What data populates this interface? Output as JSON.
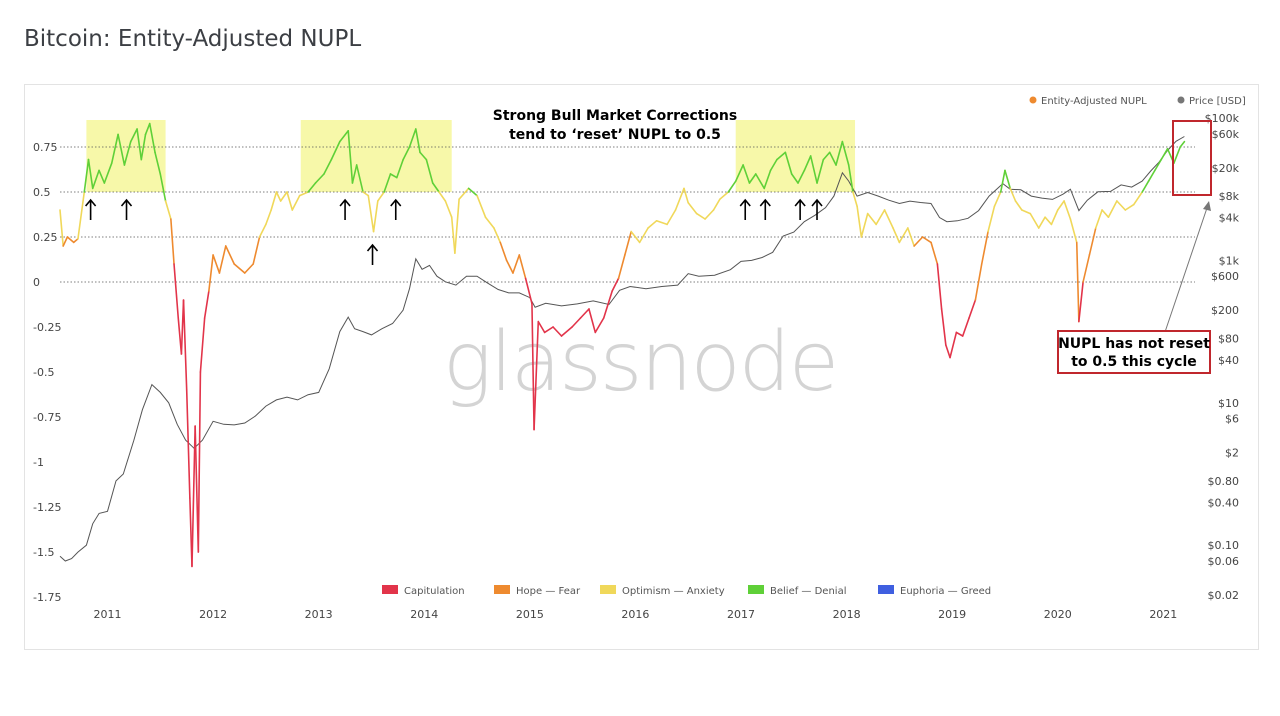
{
  "page": {
    "title": "Bitcoin: Entity-Adjusted NUPL"
  },
  "watermark": "glassnode",
  "chart_data": {
    "type": "line",
    "title": "Bitcoin: Entity-Adjusted NUPL",
    "x_ticks": [
      "2011",
      "2012",
      "2013",
      "2014",
      "2015",
      "2016",
      "2017",
      "2018",
      "2019",
      "2020",
      "2021"
    ],
    "x_range": [
      2010.55,
      2021.3
    ],
    "y_left": {
      "ticks": [
        "0.75",
        "0.5",
        "0.25",
        "0",
        "-0.25",
        "-0.5",
        "-0.75",
        "-1",
        "-1.25",
        "-1.5",
        "-1.75"
      ],
      "tick_values": [
        0.75,
        0.5,
        0.25,
        0,
        -0.25,
        -0.5,
        -0.75,
        -1,
        -1.25,
        -1.5,
        -1.75
      ],
      "range": [
        -1.75,
        0.9
      ],
      "dotted_levels": [
        0.75,
        0.5,
        0.25,
        0
      ]
    },
    "y_right": {
      "scale": "log",
      "ticks": [
        "$100k",
        "$60k",
        "$20k",
        "$8k",
        "$4k",
        "$1k",
        "$600",
        "$200",
        "$80",
        "$40",
        "$10",
        "$6",
        "$2",
        "$0.80",
        "$0.40",
        "$0.10",
        "$0.06",
        "$0.02"
      ],
      "tick_values": [
        100000,
        60000,
        20000,
        8000,
        4000,
        1000,
        600,
        200,
        80,
        40,
        10,
        6,
        2,
        0.8,
        0.4,
        0.1,
        0.06,
        0.02
      ]
    },
    "legend_top": [
      {
        "name": "Entity-Adjusted NUPL",
        "color": "#ee8a2f"
      },
      {
        "name": "Price [USD]",
        "color": "#777777"
      }
    ],
    "legend_bottom": [
      {
        "name": "Capitulation",
        "color": "#e2344a"
      },
      {
        "name": "Hope — Fear",
        "color": "#ee8a2f"
      },
      {
        "name": "Optimism — Anxiety",
        "color": "#f0d85a"
      },
      {
        "name": "Belief — Denial",
        "color": "#5fd038"
      },
      {
        "name": "Euphoria — Greed",
        "color": "#3f5fe0"
      }
    ],
    "zone_thresholds": {
      "capitulation_below": 0,
      "hope_fear_below": 0.25,
      "optimism_below": 0.5,
      "belief_below": 0.75
    },
    "nupl_series": [
      [
        2010.55,
        0.4
      ],
      [
        2010.58,
        0.2
      ],
      [
        2010.62,
        0.25
      ],
      [
        2010.68,
        0.22
      ],
      [
        2010.72,
        0.24
      ],
      [
        2010.78,
        0.5
      ],
      [
        2010.82,
        0.68
      ],
      [
        2010.86,
        0.52
      ],
      [
        2010.92,
        0.62
      ],
      [
        2010.97,
        0.55
      ],
      [
        2011.04,
        0.66
      ],
      [
        2011.1,
        0.82
      ],
      [
        2011.16,
        0.65
      ],
      [
        2011.22,
        0.78
      ],
      [
        2011.28,
        0.85
      ],
      [
        2011.32,
        0.68
      ],
      [
        2011.36,
        0.82
      ],
      [
        2011.4,
        0.88
      ],
      [
        2011.45,
        0.72
      ],
      [
        2011.5,
        0.6
      ],
      [
        2011.55,
        0.45
      ],
      [
        2011.6,
        0.35
      ],
      [
        2011.63,
        0.1
      ],
      [
        2011.67,
        -0.2
      ],
      [
        2011.7,
        -0.4
      ],
      [
        2011.72,
        -0.1
      ],
      [
        2011.75,
        -0.6
      ],
      [
        2011.78,
        -1.2
      ],
      [
        2011.8,
        -1.58
      ],
      [
        2011.83,
        -0.8
      ],
      [
        2011.86,
        -1.5
      ],
      [
        2011.88,
        -0.5
      ],
      [
        2011.92,
        -0.2
      ],
      [
        2011.96,
        -0.05
      ],
      [
        2012.0,
        0.15
      ],
      [
        2012.06,
        0.05
      ],
      [
        2012.12,
        0.2
      ],
      [
        2012.2,
        0.1
      ],
      [
        2012.3,
        0.05
      ],
      [
        2012.38,
        0.1
      ],
      [
        2012.44,
        0.25
      ],
      [
        2012.5,
        0.32
      ],
      [
        2012.55,
        0.4
      ],
      [
        2012.6,
        0.5
      ],
      [
        2012.64,
        0.45
      ],
      [
        2012.7,
        0.5
      ],
      [
        2012.75,
        0.4
      ],
      [
        2012.82,
        0.48
      ],
      [
        2012.9,
        0.5
      ],
      [
        2012.97,
        0.55
      ],
      [
        2013.05,
        0.6
      ],
      [
        2013.12,
        0.68
      ],
      [
        2013.2,
        0.78
      ],
      [
        2013.28,
        0.84
      ],
      [
        2013.32,
        0.55
      ],
      [
        2013.36,
        0.65
      ],
      [
        2013.42,
        0.5
      ],
      [
        2013.47,
        0.48
      ],
      [
        2013.52,
        0.28
      ],
      [
        2013.56,
        0.45
      ],
      [
        2013.62,
        0.5
      ],
      [
        2013.68,
        0.6
      ],
      [
        2013.74,
        0.58
      ],
      [
        2013.8,
        0.68
      ],
      [
        2013.86,
        0.75
      ],
      [
        2013.92,
        0.85
      ],
      [
        2013.96,
        0.72
      ],
      [
        2014.02,
        0.68
      ],
      [
        2014.08,
        0.55
      ],
      [
        2014.14,
        0.5
      ],
      [
        2014.2,
        0.45
      ],
      [
        2014.26,
        0.36
      ],
      [
        2014.29,
        0.16
      ],
      [
        2014.33,
        0.46
      ],
      [
        2014.42,
        0.52
      ],
      [
        2014.5,
        0.48
      ],
      [
        2014.58,
        0.36
      ],
      [
        2014.66,
        0.3
      ],
      [
        2014.72,
        0.22
      ],
      [
        2014.78,
        0.12
      ],
      [
        2014.84,
        0.05
      ],
      [
        2014.9,
        0.15
      ],
      [
        2014.96,
        0.02
      ],
      [
        2015.02,
        -0.12
      ],
      [
        2015.04,
        -0.82
      ],
      [
        2015.08,
        -0.22
      ],
      [
        2015.14,
        -0.28
      ],
      [
        2015.22,
        -0.25
      ],
      [
        2015.3,
        -0.3
      ],
      [
        2015.4,
        -0.25
      ],
      [
        2015.48,
        -0.2
      ],
      [
        2015.56,
        -0.15
      ],
      [
        2015.62,
        -0.28
      ],
      [
        2015.7,
        -0.2
      ],
      [
        2015.78,
        -0.05
      ],
      [
        2015.84,
        0.02
      ],
      [
        2015.9,
        0.15
      ],
      [
        2015.96,
        0.28
      ],
      [
        2016.04,
        0.22
      ],
      [
        2016.12,
        0.3
      ],
      [
        2016.2,
        0.34
      ],
      [
        2016.3,
        0.32
      ],
      [
        2016.38,
        0.4
      ],
      [
        2016.46,
        0.52
      ],
      [
        2016.5,
        0.44
      ],
      [
        2016.58,
        0.38
      ],
      [
        2016.66,
        0.35
      ],
      [
        2016.74,
        0.4
      ],
      [
        2016.8,
        0.46
      ],
      [
        2016.88,
        0.5
      ],
      [
        2016.95,
        0.56
      ],
      [
        2017.02,
        0.65
      ],
      [
        2017.08,
        0.55
      ],
      [
        2017.14,
        0.6
      ],
      [
        2017.22,
        0.52
      ],
      [
        2017.28,
        0.62
      ],
      [
        2017.34,
        0.68
      ],
      [
        2017.42,
        0.72
      ],
      [
        2017.48,
        0.6
      ],
      [
        2017.54,
        0.55
      ],
      [
        2017.6,
        0.62
      ],
      [
        2017.66,
        0.7
      ],
      [
        2017.72,
        0.55
      ],
      [
        2017.78,
        0.68
      ],
      [
        2017.84,
        0.72
      ],
      [
        2017.9,
        0.65
      ],
      [
        2017.96,
        0.78
      ],
      [
        2018.02,
        0.65
      ],
      [
        2018.06,
        0.5
      ],
      [
        2018.1,
        0.42
      ],
      [
        2018.14,
        0.25
      ],
      [
        2018.2,
        0.38
      ],
      [
        2018.28,
        0.32
      ],
      [
        2018.36,
        0.4
      ],
      [
        2018.44,
        0.3
      ],
      [
        2018.5,
        0.22
      ],
      [
        2018.58,
        0.3
      ],
      [
        2018.64,
        0.2
      ],
      [
        2018.72,
        0.25
      ],
      [
        2018.8,
        0.22
      ],
      [
        2018.86,
        0.1
      ],
      [
        2018.9,
        -0.15
      ],
      [
        2018.94,
        -0.35
      ],
      [
        2018.98,
        -0.42
      ],
      [
        2019.04,
        -0.28
      ],
      [
        2019.1,
        -0.3
      ],
      [
        2019.16,
        -0.2
      ],
      [
        2019.22,
        -0.1
      ],
      [
        2019.28,
        0.1
      ],
      [
        2019.34,
        0.28
      ],
      [
        2019.4,
        0.42
      ],
      [
        2019.46,
        0.5
      ],
      [
        2019.5,
        0.62
      ],
      [
        2019.55,
        0.52
      ],
      [
        2019.6,
        0.45
      ],
      [
        2019.66,
        0.4
      ],
      [
        2019.74,
        0.38
      ],
      [
        2019.82,
        0.3
      ],
      [
        2019.88,
        0.36
      ],
      [
        2019.94,
        0.32
      ],
      [
        2020.0,
        0.4
      ],
      [
        2020.06,
        0.45
      ],
      [
        2020.12,
        0.35
      ],
      [
        2020.18,
        0.22
      ],
      [
        2020.2,
        -0.22
      ],
      [
        2020.24,
        0.0
      ],
      [
        2020.3,
        0.15
      ],
      [
        2020.36,
        0.3
      ],
      [
        2020.42,
        0.4
      ],
      [
        2020.48,
        0.36
      ],
      [
        2020.56,
        0.45
      ],
      [
        2020.64,
        0.4
      ],
      [
        2020.72,
        0.43
      ],
      [
        2020.8,
        0.5
      ],
      [
        2020.86,
        0.56
      ],
      [
        2020.92,
        0.62
      ],
      [
        2020.98,
        0.68
      ],
      [
        2021.04,
        0.74
      ],
      [
        2021.1,
        0.66
      ],
      [
        2021.16,
        0.75
      ],
      [
        2021.2,
        0.78
      ]
    ],
    "price_series": [
      [
        2010.55,
        0.07
      ],
      [
        2010.6,
        0.06
      ],
      [
        2010.66,
        0.065
      ],
      [
        2010.72,
        0.08
      ],
      [
        2010.8,
        0.1
      ],
      [
        2010.86,
        0.2
      ],
      [
        2010.92,
        0.28
      ],
      [
        2011.0,
        0.3
      ],
      [
        2011.08,
        0.8
      ],
      [
        2011.15,
        1.0
      ],
      [
        2011.25,
        3.0
      ],
      [
        2011.33,
        8
      ],
      [
        2011.42,
        18
      ],
      [
        2011.5,
        14
      ],
      [
        2011.58,
        10
      ],
      [
        2011.66,
        5
      ],
      [
        2011.74,
        3
      ],
      [
        2011.82,
        2.3
      ],
      [
        2011.9,
        3.0
      ],
      [
        2012.0,
        5.5
      ],
      [
        2012.1,
        5
      ],
      [
        2012.2,
        4.9
      ],
      [
        2012.3,
        5.2
      ],
      [
        2012.4,
        6.5
      ],
      [
        2012.5,
        9
      ],
      [
        2012.6,
        11
      ],
      [
        2012.7,
        12
      ],
      [
        2012.8,
        11
      ],
      [
        2012.9,
        13
      ],
      [
        2013.0,
        14
      ],
      [
        2013.1,
        30
      ],
      [
        2013.2,
        100
      ],
      [
        2013.28,
        160
      ],
      [
        2013.34,
        110
      ],
      [
        2013.42,
        100
      ],
      [
        2013.5,
        90
      ],
      [
        2013.6,
        110
      ],
      [
        2013.7,
        130
      ],
      [
        2013.8,
        200
      ],
      [
        2013.86,
        400
      ],
      [
        2013.92,
        1050
      ],
      [
        2013.98,
        750
      ],
      [
        2014.05,
        850
      ],
      [
        2014.12,
        600
      ],
      [
        2014.2,
        500
      ],
      [
        2014.3,
        450
      ],
      [
        2014.4,
        600
      ],
      [
        2014.5,
        600
      ],
      [
        2014.6,
        480
      ],
      [
        2014.7,
        390
      ],
      [
        2014.8,
        350
      ],
      [
        2014.9,
        350
      ],
      [
        2015.0,
        300
      ],
      [
        2015.05,
        220
      ],
      [
        2015.15,
        250
      ],
      [
        2015.3,
        230
      ],
      [
        2015.45,
        245
      ],
      [
        2015.6,
        270
      ],
      [
        2015.75,
        240
      ],
      [
        2015.85,
        380
      ],
      [
        2015.95,
        430
      ],
      [
        2016.1,
        400
      ],
      [
        2016.25,
        430
      ],
      [
        2016.4,
        450
      ],
      [
        2016.5,
        650
      ],
      [
        2016.6,
        600
      ],
      [
        2016.75,
        620
      ],
      [
        2016.9,
        740
      ],
      [
        2017.0,
        970
      ],
      [
        2017.1,
        1000
      ],
      [
        2017.2,
        1100
      ],
      [
        2017.3,
        1300
      ],
      [
        2017.4,
        2200
      ],
      [
        2017.5,
        2500
      ],
      [
        2017.6,
        3500
      ],
      [
        2017.7,
        4300
      ],
      [
        2017.8,
        5500
      ],
      [
        2017.88,
        8000
      ],
      [
        2017.96,
        17000
      ],
      [
        2018.02,
        13000
      ],
      [
        2018.1,
        8000
      ],
      [
        2018.2,
        9000
      ],
      [
        2018.3,
        8000
      ],
      [
        2018.4,
        7000
      ],
      [
        2018.5,
        6300
      ],
      [
        2018.6,
        6800
      ],
      [
        2018.7,
        6500
      ],
      [
        2018.8,
        6300
      ],
      [
        2018.88,
        4000
      ],
      [
        2018.95,
        3500
      ],
      [
        2019.05,
        3600
      ],
      [
        2019.15,
        3900
      ],
      [
        2019.25,
        5000
      ],
      [
        2019.35,
        8000
      ],
      [
        2019.48,
        12000
      ],
      [
        2019.55,
        10000
      ],
      [
        2019.65,
        9800
      ],
      [
        2019.75,
        8000
      ],
      [
        2019.85,
        7500
      ],
      [
        2019.95,
        7200
      ],
      [
        2020.05,
        8500
      ],
      [
        2020.12,
        10000
      ],
      [
        2020.2,
        5000
      ],
      [
        2020.28,
        7000
      ],
      [
        2020.38,
        9200
      ],
      [
        2020.5,
        9300
      ],
      [
        2020.6,
        11500
      ],
      [
        2020.7,
        10700
      ],
      [
        2020.8,
        13000
      ],
      [
        2020.88,
        18000
      ],
      [
        2020.96,
        24000
      ],
      [
        2021.04,
        35000
      ],
      [
        2021.12,
        47000
      ],
      [
        2021.2,
        55000
      ]
    ],
    "highlight_boxes": [
      [
        2010.8,
        2011.55
      ],
      [
        2012.83,
        2014.26
      ],
      [
        2016.95,
        2018.08
      ]
    ],
    "arrows": [
      {
        "x": 2010.84,
        "nupl": 0.5
      },
      {
        "x": 2011.18,
        "nupl": 0.5
      },
      {
        "x": 2013.25,
        "nupl": 0.5
      },
      {
        "x": 2013.51,
        "nupl": 0.25
      },
      {
        "x": 2013.73,
        "nupl": 0.5
      },
      {
        "x": 2017.04,
        "nupl": 0.5
      },
      {
        "x": 2017.23,
        "nupl": 0.5
      },
      {
        "x": 2017.56,
        "nupl": 0.5
      },
      {
        "x": 2017.72,
        "nupl": 0.5
      }
    ],
    "annotation_top": [
      "Strong Bull Market Corrections",
      "tend to ‘reset’ NUPL to 0.5"
    ],
    "annotation_note": [
      "NUPL has not reset",
      "to 0.5 this cycle"
    ],
    "note_box_color": "#c0272d"
  }
}
